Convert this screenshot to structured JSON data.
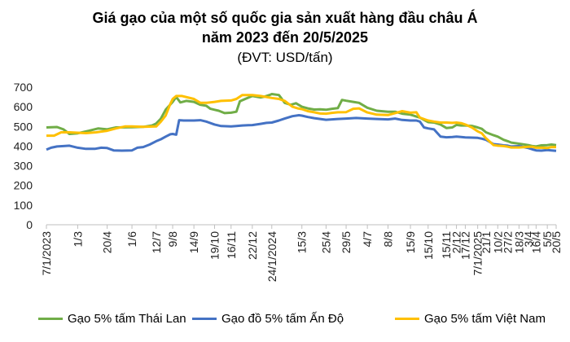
{
  "title_line1": "Giá gạo của một số quốc gia sản xuất hàng đầu châu Á",
  "title_line2": "năm 2023 đến 20/5/2025",
  "subtitle": "(ĐVT: USD/tấn)",
  "chart_data": {
    "type": "line",
    "title": "Giá gạo của một số quốc gia sản xuất hàng đầu châu Á năm 2023 đến 20/5/2025",
    "subtitle": "(ĐVT: USD/tấn)",
    "ylim": [
      0,
      700
    ],
    "yticks": [
      0,
      100,
      200,
      300,
      400,
      500,
      600,
      700
    ],
    "grid": false,
    "legend_position": "bottom",
    "x_start": "2023-01-07",
    "x_end": "2025-05-20",
    "xticks": [
      {
        "date": "2023-01-07",
        "label": "7/1/2023"
      },
      {
        "date": "2023-03-01",
        "label": "1/3"
      },
      {
        "date": "2023-04-20",
        "label": "20/4"
      },
      {
        "date": "2023-06-01",
        "label": "1/6"
      },
      {
        "date": "2023-07-12",
        "label": "12/7"
      },
      {
        "date": "2023-08-09",
        "label": "9/8"
      },
      {
        "date": "2023-09-14",
        "label": "14/9"
      },
      {
        "date": "2023-10-19",
        "label": "19/10"
      },
      {
        "date": "2023-11-16",
        "label": "16/11"
      },
      {
        "date": "2023-12-22",
        "label": "22/12"
      },
      {
        "date": "2024-01-24",
        "label": "24/1/2024"
      },
      {
        "date": "2024-03-15",
        "label": "15/3"
      },
      {
        "date": "2024-04-25",
        "label": "25/4"
      },
      {
        "date": "2024-05-29",
        "label": "29/5"
      },
      {
        "date": "2024-07-04",
        "label": "4/7"
      },
      {
        "date": "2024-08-08",
        "label": "8/8"
      },
      {
        "date": "2024-09-15",
        "label": "15/9"
      },
      {
        "date": "2024-10-15",
        "label": "15/10"
      },
      {
        "date": "2024-11-15",
        "label": "15/11"
      },
      {
        "date": "2024-12-02",
        "label": "2/12"
      },
      {
        "date": "2024-12-17",
        "label": "17/12"
      },
      {
        "date": "2025-01-07",
        "label": "7/1/2025"
      },
      {
        "date": "2025-01-21",
        "label": "21/1"
      },
      {
        "date": "2025-02-10",
        "label": "10/2"
      },
      {
        "date": "2025-02-27",
        "label": "27/2"
      },
      {
        "date": "2025-03-18",
        "label": "18/3"
      },
      {
        "date": "2025-04-03",
        "label": "3/4"
      },
      {
        "date": "2025-04-16",
        "label": "16/4"
      },
      {
        "date": "2025-05-05",
        "label": "5/5"
      },
      {
        "date": "2025-05-20",
        "label": "20/5"
      }
    ],
    "series": [
      {
        "name": "Gạo 5% tấm Thái Lan",
        "color": "#70AD47",
        "points": [
          [
            "2023-01-07",
            495
          ],
          [
            "2023-01-25",
            497
          ],
          [
            "2023-02-05",
            485
          ],
          [
            "2023-02-15",
            462
          ],
          [
            "2023-03-01",
            465
          ],
          [
            "2023-03-20",
            478
          ],
          [
            "2023-04-05",
            490
          ],
          [
            "2023-04-20",
            485
          ],
          [
            "2023-05-05",
            495
          ],
          [
            "2023-06-01",
            496
          ],
          [
            "2023-06-20",
            498
          ],
          [
            "2023-07-05",
            505
          ],
          [
            "2023-07-12",
            515
          ],
          [
            "2023-07-20",
            540
          ],
          [
            "2023-07-28",
            585
          ],
          [
            "2023-08-09",
            625
          ],
          [
            "2023-08-15",
            650
          ],
          [
            "2023-08-22",
            622
          ],
          [
            "2023-09-01",
            630
          ],
          [
            "2023-09-14",
            625
          ],
          [
            "2023-09-25",
            610
          ],
          [
            "2023-10-05",
            605
          ],
          [
            "2023-10-12",
            590
          ],
          [
            "2023-10-19",
            585
          ],
          [
            "2023-10-26",
            580
          ],
          [
            "2023-11-05",
            568
          ],
          [
            "2023-11-16",
            570
          ],
          [
            "2023-11-25",
            575
          ],
          [
            "2023-12-01",
            628
          ],
          [
            "2023-12-10",
            640
          ],
          [
            "2023-12-22",
            655
          ],
          [
            "2024-01-05",
            648
          ],
          [
            "2024-01-12",
            652
          ],
          [
            "2024-01-20",
            660
          ],
          [
            "2024-01-24",
            665
          ],
          [
            "2024-02-05",
            660
          ],
          [
            "2024-02-15",
            620
          ],
          [
            "2024-02-25",
            610
          ],
          [
            "2024-03-05",
            618
          ],
          [
            "2024-03-15",
            600
          ],
          [
            "2024-03-25",
            592
          ],
          [
            "2024-04-05",
            586
          ],
          [
            "2024-04-15",
            587
          ],
          [
            "2024-04-25",
            585
          ],
          [
            "2024-05-05",
            590
          ],
          [
            "2024-05-15",
            593
          ],
          [
            "2024-05-22",
            635
          ],
          [
            "2024-05-29",
            631
          ],
          [
            "2024-06-10",
            625
          ],
          [
            "2024-06-20",
            620
          ],
          [
            "2024-07-04",
            595
          ],
          [
            "2024-07-20",
            580
          ],
          [
            "2024-08-08",
            575
          ],
          [
            "2024-08-20",
            575
          ],
          [
            "2024-09-01",
            565
          ],
          [
            "2024-09-15",
            560
          ],
          [
            "2024-10-01",
            545
          ],
          [
            "2024-10-10",
            530
          ],
          [
            "2024-10-15",
            522
          ],
          [
            "2024-10-25",
            520
          ],
          [
            "2024-11-05",
            510
          ],
          [
            "2024-11-15",
            492
          ],
          [
            "2024-11-25",
            495
          ],
          [
            "2024-12-02",
            508
          ],
          [
            "2024-12-10",
            505
          ],
          [
            "2024-12-17",
            505
          ],
          [
            "2024-12-28",
            503
          ],
          [
            "2025-01-07",
            495
          ],
          [
            "2025-01-14",
            488
          ],
          [
            "2025-01-21",
            470
          ],
          [
            "2025-02-03",
            455
          ],
          [
            "2025-02-10",
            448
          ],
          [
            "2025-02-20",
            432
          ],
          [
            "2025-02-27",
            425
          ],
          [
            "2025-03-05",
            418
          ],
          [
            "2025-03-18",
            412
          ],
          [
            "2025-04-03",
            405
          ],
          [
            "2025-04-10",
            400
          ],
          [
            "2025-04-16",
            398
          ],
          [
            "2025-04-25",
            404
          ],
          [
            "2025-05-05",
            405
          ],
          [
            "2025-05-12",
            408
          ],
          [
            "2025-05-20",
            405
          ]
        ]
      },
      {
        "name": "Gạo đồ 5% tấm Ấn Độ",
        "color": "#4472C4",
        "points": [
          [
            "2023-01-07",
            382
          ],
          [
            "2023-01-15",
            392
          ],
          [
            "2023-01-25",
            398
          ],
          [
            "2023-02-05",
            400
          ],
          [
            "2023-02-15",
            402
          ],
          [
            "2023-03-01",
            392
          ],
          [
            "2023-03-15",
            386
          ],
          [
            "2023-03-30",
            386
          ],
          [
            "2023-04-10",
            392
          ],
          [
            "2023-04-20",
            390
          ],
          [
            "2023-05-01",
            378
          ],
          [
            "2023-05-15",
            377
          ],
          [
            "2023-06-01",
            378
          ],
          [
            "2023-06-10",
            392
          ],
          [
            "2023-06-20",
            395
          ],
          [
            "2023-07-01",
            408
          ],
          [
            "2023-07-12",
            425
          ],
          [
            "2023-07-20",
            435
          ],
          [
            "2023-07-28",
            448
          ],
          [
            "2023-08-05",
            460
          ],
          [
            "2023-08-09",
            462
          ],
          [
            "2023-08-15",
            458
          ],
          [
            "2023-08-20",
            532
          ],
          [
            "2023-08-28",
            530
          ],
          [
            "2023-09-14",
            530
          ],
          [
            "2023-09-25",
            532
          ],
          [
            "2023-10-05",
            525
          ],
          [
            "2023-10-19",
            510
          ],
          [
            "2023-10-30",
            502
          ],
          [
            "2023-11-16",
            500
          ],
          [
            "2023-11-25",
            502
          ],
          [
            "2023-12-05",
            505
          ],
          [
            "2023-12-15",
            506
          ],
          [
            "2023-12-22",
            507
          ],
          [
            "2024-01-05",
            513
          ],
          [
            "2024-01-15",
            518
          ],
          [
            "2024-01-24",
            520
          ],
          [
            "2024-02-05",
            530
          ],
          [
            "2024-02-15",
            540
          ],
          [
            "2024-02-28",
            552
          ],
          [
            "2024-03-10",
            557
          ],
          [
            "2024-03-15",
            555
          ],
          [
            "2024-03-25",
            548
          ],
          [
            "2024-04-05",
            542
          ],
          [
            "2024-04-15",
            538
          ],
          [
            "2024-04-25",
            534
          ],
          [
            "2024-05-05",
            536
          ],
          [
            "2024-05-15",
            538
          ],
          [
            "2024-05-29",
            540
          ],
          [
            "2024-06-15",
            543
          ],
          [
            "2024-07-04",
            540
          ],
          [
            "2024-07-20",
            538
          ],
          [
            "2024-08-08",
            536
          ],
          [
            "2024-08-20",
            540
          ],
          [
            "2024-09-01",
            533
          ],
          [
            "2024-09-15",
            530
          ],
          [
            "2024-09-25",
            530
          ],
          [
            "2024-10-01",
            525
          ],
          [
            "2024-10-08",
            495
          ],
          [
            "2024-10-15",
            490
          ],
          [
            "2024-10-25",
            485
          ],
          [
            "2024-11-05",
            448
          ],
          [
            "2024-11-15",
            445
          ],
          [
            "2024-11-25",
            446
          ],
          [
            "2024-12-02",
            448
          ],
          [
            "2024-12-10",
            446
          ],
          [
            "2024-12-17",
            444
          ],
          [
            "2024-12-28",
            443
          ],
          [
            "2025-01-07",
            442
          ],
          [
            "2025-01-14",
            438
          ],
          [
            "2025-01-21",
            432
          ],
          [
            "2025-02-03",
            410
          ],
          [
            "2025-02-10",
            408
          ],
          [
            "2025-02-20",
            404
          ],
          [
            "2025-02-27",
            402
          ],
          [
            "2025-03-05",
            398
          ],
          [
            "2025-03-18",
            400
          ],
          [
            "2025-04-03",
            390
          ],
          [
            "2025-04-10",
            383
          ],
          [
            "2025-04-16",
            378
          ],
          [
            "2025-04-25",
            377
          ],
          [
            "2025-05-05",
            380
          ],
          [
            "2025-05-12",
            378
          ],
          [
            "2025-05-20",
            376
          ]
        ]
      },
      {
        "name": "Gạo 5% tấm Việt Nam",
        "color": "#FFC000",
        "points": [
          [
            "2023-01-07",
            453
          ],
          [
            "2023-01-20",
            453
          ],
          [
            "2023-02-01",
            470
          ],
          [
            "2023-02-15",
            470
          ],
          [
            "2023-03-01",
            468
          ],
          [
            "2023-03-15",
            466
          ],
          [
            "2023-04-01",
            470
          ],
          [
            "2023-04-20",
            478
          ],
          [
            "2023-05-05",
            490
          ],
          [
            "2023-05-20",
            500
          ],
          [
            "2023-06-01",
            500
          ],
          [
            "2023-06-20",
            498
          ],
          [
            "2023-07-12",
            500
          ],
          [
            "2023-07-20",
            525
          ],
          [
            "2023-07-28",
            555
          ],
          [
            "2023-08-05",
            615
          ],
          [
            "2023-08-09",
            640
          ],
          [
            "2023-08-15",
            655
          ],
          [
            "2023-08-25",
            655
          ],
          [
            "2023-09-14",
            640
          ],
          [
            "2023-09-25",
            620
          ],
          [
            "2023-10-05",
            620
          ],
          [
            "2023-10-19",
            625
          ],
          [
            "2023-10-30",
            630
          ],
          [
            "2023-11-16",
            632
          ],
          [
            "2023-11-25",
            640
          ],
          [
            "2023-12-05",
            660
          ],
          [
            "2023-12-22",
            660
          ],
          [
            "2024-01-05",
            655
          ],
          [
            "2024-01-15",
            650
          ],
          [
            "2024-01-24",
            645
          ],
          [
            "2024-02-05",
            640
          ],
          [
            "2024-02-15",
            630
          ],
          [
            "2024-02-28",
            600
          ],
          [
            "2024-03-08",
            592
          ],
          [
            "2024-03-15",
            588
          ],
          [
            "2024-03-25",
            578
          ],
          [
            "2024-04-05",
            572
          ],
          [
            "2024-04-15",
            566
          ],
          [
            "2024-04-25",
            565
          ],
          [
            "2024-05-05",
            569
          ],
          [
            "2024-05-15",
            572
          ],
          [
            "2024-05-29",
            573
          ],
          [
            "2024-06-10",
            590
          ],
          [
            "2024-06-20",
            592
          ],
          [
            "2024-07-04",
            571
          ],
          [
            "2024-07-20",
            560
          ],
          [
            "2024-08-08",
            558
          ],
          [
            "2024-08-20",
            568
          ],
          [
            "2024-09-01",
            578
          ],
          [
            "2024-09-15",
            570
          ],
          [
            "2024-09-25",
            572
          ],
          [
            "2024-10-01",
            545
          ],
          [
            "2024-10-10",
            535
          ],
          [
            "2024-10-15",
            530
          ],
          [
            "2024-10-25",
            525
          ],
          [
            "2024-11-05",
            520
          ],
          [
            "2024-11-15",
            520
          ],
          [
            "2024-11-25",
            518
          ],
          [
            "2024-12-02",
            520
          ],
          [
            "2024-12-10",
            517
          ],
          [
            "2024-12-17",
            510
          ],
          [
            "2024-12-28",
            495
          ],
          [
            "2025-01-07",
            475
          ],
          [
            "2025-01-14",
            465
          ],
          [
            "2025-01-21",
            440
          ],
          [
            "2025-02-03",
            405
          ],
          [
            "2025-02-10",
            402
          ],
          [
            "2025-02-20",
            400
          ],
          [
            "2025-02-27",
            397
          ],
          [
            "2025-03-05",
            393
          ],
          [
            "2025-03-18",
            393
          ],
          [
            "2025-04-03",
            397
          ],
          [
            "2025-04-10",
            397
          ],
          [
            "2025-04-16",
            392
          ],
          [
            "2025-04-25",
            392
          ],
          [
            "2025-05-05",
            390
          ],
          [
            "2025-05-12",
            395
          ],
          [
            "2025-05-20",
            395
          ]
        ]
      }
    ]
  }
}
